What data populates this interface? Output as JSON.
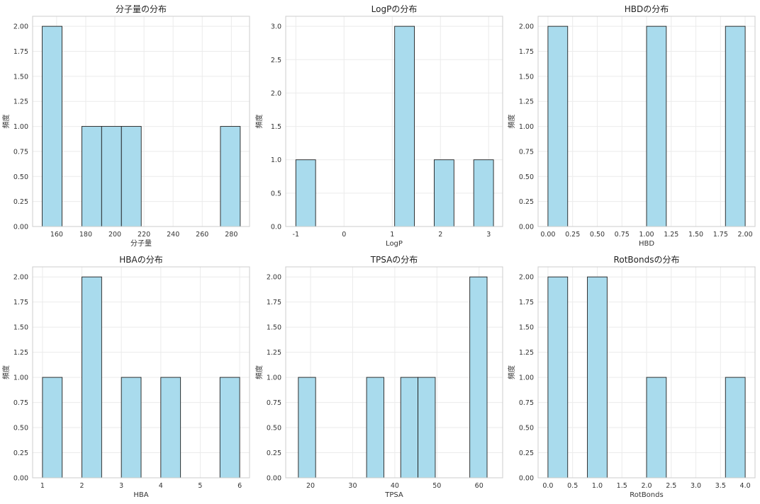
{
  "chart_data": [
    {
      "type": "bar",
      "title": "分子量の分布",
      "xlabel": "分子量",
      "ylabel": "頻度",
      "xlim": [
        143.5,
        292.5
      ],
      "ylim": [
        0,
        2.1
      ],
      "xticks": [
        160,
        180,
        200,
        220,
        240,
        260,
        280
      ],
      "yticks": [
        0.0,
        0.25,
        0.5,
        0.75,
        1.0,
        1.25,
        1.5,
        1.75,
        2.0
      ],
      "ytick_labels": [
        "0.00",
        "0.25",
        "0.50",
        "0.75",
        "1.00",
        "1.25",
        "1.50",
        "1.75",
        "2.00"
      ],
      "bins": [
        {
          "from": 150.1,
          "to": 163.7,
          "count": 2
        },
        {
          "from": 177.3,
          "to": 190.9,
          "count": 1
        },
        {
          "from": 190.9,
          "to": 204.5,
          "count": 1
        },
        {
          "from": 204.5,
          "to": 218.1,
          "count": 1
        },
        {
          "from": 272.5,
          "to": 286.1,
          "count": 1
        }
      ]
    },
    {
      "type": "bar",
      "title": "LogPの分布",
      "xlabel": "LogP",
      "ylabel": "頻度",
      "xlim": [
        -1.21,
        3.29
      ],
      "ylim": [
        0,
        3.15
      ],
      "xticks": [
        -1,
        0,
        1,
        2,
        3
      ],
      "yticks": [
        0.0,
        0.5,
        1.0,
        1.5,
        2.0,
        2.5,
        3.0
      ],
      "ytick_labels": [
        "0.0",
        "0.5",
        "1.0",
        "1.5",
        "2.0",
        "2.5",
        "3.0"
      ],
      "bins": [
        {
          "from": -1.0,
          "to": -0.59,
          "count": 1
        },
        {
          "from": 1.05,
          "to": 1.46,
          "count": 3
        },
        {
          "from": 1.87,
          "to": 2.28,
          "count": 1
        },
        {
          "from": 2.69,
          "to": 3.1,
          "count": 1
        }
      ]
    },
    {
      "type": "bar",
      "title": "HBDの分布",
      "xlabel": "HBD",
      "ylabel": "頻度",
      "xlim": [
        -0.1,
        2.1
      ],
      "ylim": [
        0,
        2.1
      ],
      "xticks": [
        0.0,
        0.25,
        0.5,
        0.75,
        1.0,
        1.25,
        1.5,
        1.75,
        2.0
      ],
      "xtick_labels": [
        "0.00",
        "0.25",
        "0.50",
        "0.75",
        "1.00",
        "1.25",
        "1.50",
        "1.75",
        "2.00"
      ],
      "yticks": [
        0.0,
        0.25,
        0.5,
        0.75,
        1.0,
        1.25,
        1.5,
        1.75,
        2.0
      ],
      "ytick_labels": [
        "0.00",
        "0.25",
        "0.50",
        "0.75",
        "1.00",
        "1.25",
        "1.50",
        "1.75",
        "2.00"
      ],
      "bins": [
        {
          "from": 0.0,
          "to": 0.2,
          "count": 2
        },
        {
          "from": 1.0,
          "to": 1.2,
          "count": 2
        },
        {
          "from": 1.8,
          "to": 2.0,
          "count": 2
        }
      ]
    },
    {
      "type": "bar",
      "title": "HBAの分布",
      "xlabel": "HBA",
      "ylabel": "頻度",
      "xlim": [
        0.75,
        6.25
      ],
      "ylim": [
        0,
        2.1
      ],
      "xticks": [
        1,
        2,
        3,
        4,
        5,
        6
      ],
      "yticks": [
        0.0,
        0.25,
        0.5,
        0.75,
        1.0,
        1.25,
        1.5,
        1.75,
        2.0
      ],
      "ytick_labels": [
        "0.00",
        "0.25",
        "0.50",
        "0.75",
        "1.00",
        "1.25",
        "1.50",
        "1.75",
        "2.00"
      ],
      "bins": [
        {
          "from": 1.0,
          "to": 1.5,
          "count": 1
        },
        {
          "from": 2.0,
          "to": 2.5,
          "count": 2
        },
        {
          "from": 3.0,
          "to": 3.5,
          "count": 1
        },
        {
          "from": 4.0,
          "to": 4.5,
          "count": 1
        },
        {
          "from": 5.5,
          "to": 6.0,
          "count": 1
        }
      ]
    },
    {
      "type": "bar",
      "title": "TPSAの分布",
      "xlabel": "TPSA",
      "ylabel": "頻度",
      "xlim": [
        14.1,
        65.6
      ],
      "ylim": [
        0,
        2.1
      ],
      "xticks": [
        20,
        30,
        40,
        50,
        60
      ],
      "yticks": [
        0.0,
        0.25,
        0.5,
        0.75,
        1.0,
        1.25,
        1.5,
        1.75,
        2.0
      ],
      "ytick_labels": [
        "0.00",
        "0.25",
        "0.50",
        "0.75",
        "1.00",
        "1.25",
        "1.50",
        "1.75",
        "2.00"
      ],
      "bins": [
        {
          "from": 17.1,
          "to": 21.2,
          "count": 1
        },
        {
          "from": 33.3,
          "to": 37.4,
          "count": 1
        },
        {
          "from": 41.4,
          "to": 45.5,
          "count": 1
        },
        {
          "from": 45.5,
          "to": 49.6,
          "count": 1
        },
        {
          "from": 53.6,
          "to": 57.7,
          "count": 0
        },
        {
          "from": 57.8,
          "to": 61.9,
          "count": 2
        }
      ]
    },
    {
      "type": "bar",
      "title": "RotBondsの分布",
      "xlabel": "RotBonds",
      "ylabel": "頻度",
      "xlim": [
        -0.2,
        4.2
      ],
      "ylim": [
        0,
        2.1
      ],
      "xticks": [
        0.0,
        0.5,
        1.0,
        1.5,
        2.0,
        2.5,
        3.0,
        3.5,
        4.0
      ],
      "xtick_labels": [
        "0.0",
        "0.5",
        "1.0",
        "1.5",
        "2.0",
        "2.5",
        "3.0",
        "3.5",
        "4.0"
      ],
      "yticks": [
        0.0,
        0.25,
        0.5,
        0.75,
        1.0,
        1.25,
        1.5,
        1.75,
        2.0
      ],
      "ytick_labels": [
        "0.00",
        "0.25",
        "0.50",
        "0.75",
        "1.00",
        "1.25",
        "1.50",
        "1.75",
        "2.00"
      ],
      "bins": [
        {
          "from": 0.0,
          "to": 0.4,
          "count": 2
        },
        {
          "from": 0.8,
          "to": 1.2,
          "count": 2
        },
        {
          "from": 2.0,
          "to": 2.4,
          "count": 1
        },
        {
          "from": 3.6,
          "to": 4.0,
          "count": 1
        }
      ]
    }
  ]
}
